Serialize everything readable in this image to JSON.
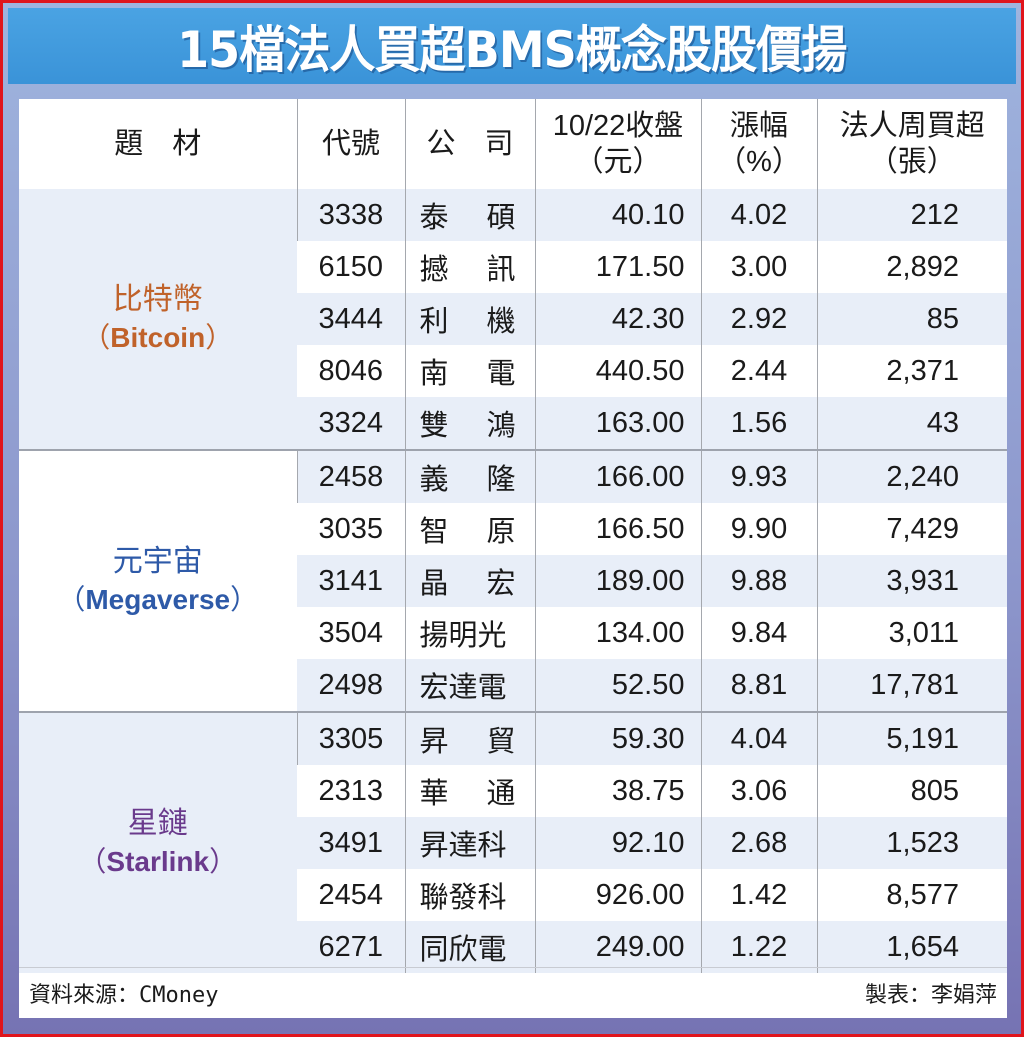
{
  "title": "15檔法人買超BMS概念股股價揚",
  "colors": {
    "frame_border": "#e0141b",
    "title_bar": "#3a93d8",
    "row_tint": "#e8eef8",
    "bitcoin": "#c0622a",
    "megaverse": "#2e5aa8",
    "starlink": "#6a3a8c"
  },
  "headers": {
    "topic": "題　材",
    "code": "代號",
    "company": "公　司",
    "close_line1": "10/22收盤",
    "close_line2": "（元）",
    "change_line1": "漲幅",
    "change_line2": "（%）",
    "net_buy_line1": "法人周買超",
    "net_buy_line2": "（張）"
  },
  "groups": [
    {
      "topic_zh": "比特幣",
      "topic_en": "Bitcoin",
      "color": "#c0622a",
      "rows": [
        {
          "code": "3338",
          "company": "泰碩",
          "close": "40.10",
          "change": "4.02",
          "net_buy": "212"
        },
        {
          "code": "6150",
          "company": "撼訊",
          "close": "171.50",
          "change": "3.00",
          "net_buy": "2,892"
        },
        {
          "code": "3444",
          "company": "利機",
          "close": "42.30",
          "change": "2.92",
          "net_buy": "85"
        },
        {
          "code": "8046",
          "company": "南電",
          "close": "440.50",
          "change": "2.44",
          "net_buy": "2,371"
        },
        {
          "code": "3324",
          "company": "雙鴻",
          "close": "163.00",
          "change": "1.56",
          "net_buy": "43"
        }
      ]
    },
    {
      "topic_zh": "元宇宙",
      "topic_en": "Megaverse",
      "color": "#2e5aa8",
      "rows": [
        {
          "code": "2458",
          "company": "義隆",
          "close": "166.00",
          "change": "9.93",
          "net_buy": "2,240"
        },
        {
          "code": "3035",
          "company": "智原",
          "close": "166.50",
          "change": "9.90",
          "net_buy": "7,429"
        },
        {
          "code": "3141",
          "company": "晶宏",
          "close": "189.00",
          "change": "9.88",
          "net_buy": "3,931"
        },
        {
          "code": "3504",
          "company": "揚明光",
          "close": "134.00",
          "change": "9.84",
          "net_buy": "3,011"
        },
        {
          "code": "2498",
          "company": "宏達電",
          "close": "52.50",
          "change": "8.81",
          "net_buy": "17,781"
        }
      ]
    },
    {
      "topic_zh": "星鏈",
      "topic_en": "Starlink",
      "color": "#6a3a8c",
      "rows": [
        {
          "code": "3305",
          "company": "昇貿",
          "close": "59.30",
          "change": "4.04",
          "net_buy": "5,191"
        },
        {
          "code": "2313",
          "company": "華通",
          "close": "38.75",
          "change": "3.06",
          "net_buy": "805"
        },
        {
          "code": "3491",
          "company": "昇達科",
          "close": "92.10",
          "change": "2.68",
          "net_buy": "1,523"
        },
        {
          "code": "2454",
          "company": "聯發科",
          "close": "926.00",
          "change": "1.42",
          "net_buy": "8,577"
        },
        {
          "code": "6271",
          "company": "同欣電",
          "close": "249.00",
          "change": "1.22",
          "net_buy": "1,654"
        }
      ]
    }
  ],
  "footer": {
    "source": "資料來源：CMoney",
    "author": "製表：李娟萍"
  },
  "chart_data": {
    "type": "table",
    "title": "15檔法人買超BMS概念股股價揚",
    "columns": [
      "題材",
      "代號",
      "公司",
      "10/22收盤（元）",
      "漲幅（%）",
      "法人周買超（張）"
    ],
    "rows": [
      [
        "比特幣 (Bitcoin)",
        "3338",
        "泰碩",
        40.1,
        4.02,
        212
      ],
      [
        "比特幣 (Bitcoin)",
        "6150",
        "撼訊",
        171.5,
        3.0,
        2892
      ],
      [
        "比特幣 (Bitcoin)",
        "3444",
        "利機",
        42.3,
        2.92,
        85
      ],
      [
        "比特幣 (Bitcoin)",
        "8046",
        "南電",
        440.5,
        2.44,
        2371
      ],
      [
        "比特幣 (Bitcoin)",
        "3324",
        "雙鴻",
        163.0,
        1.56,
        43
      ],
      [
        "元宇宙 (Megaverse)",
        "2458",
        "義隆",
        166.0,
        9.93,
        2240
      ],
      [
        "元宇宙 (Megaverse)",
        "3035",
        "智原",
        166.5,
        9.9,
        7429
      ],
      [
        "元宇宙 (Megaverse)",
        "3141",
        "晶宏",
        189.0,
        9.88,
        3931
      ],
      [
        "元宇宙 (Megaverse)",
        "3504",
        "揚明光",
        134.0,
        9.84,
        3011
      ],
      [
        "元宇宙 (Megaverse)",
        "2498",
        "宏達電",
        52.5,
        8.81,
        17781
      ],
      [
        "星鏈 (Starlink)",
        "3305",
        "昇貿",
        59.3,
        4.04,
        5191
      ],
      [
        "星鏈 (Starlink)",
        "2313",
        "華通",
        38.75,
        3.06,
        805
      ],
      [
        "星鏈 (Starlink)",
        "3491",
        "昇達科",
        92.1,
        2.68,
        1523
      ],
      [
        "星鏈 (Starlink)",
        "2454",
        "聯發科",
        926.0,
        1.42,
        8577
      ],
      [
        "星鏈 (Starlink)",
        "6271",
        "同欣電",
        249.0,
        1.22,
        1654
      ]
    ],
    "source": "資料來源：CMoney",
    "author": "製表：李娟萍"
  }
}
